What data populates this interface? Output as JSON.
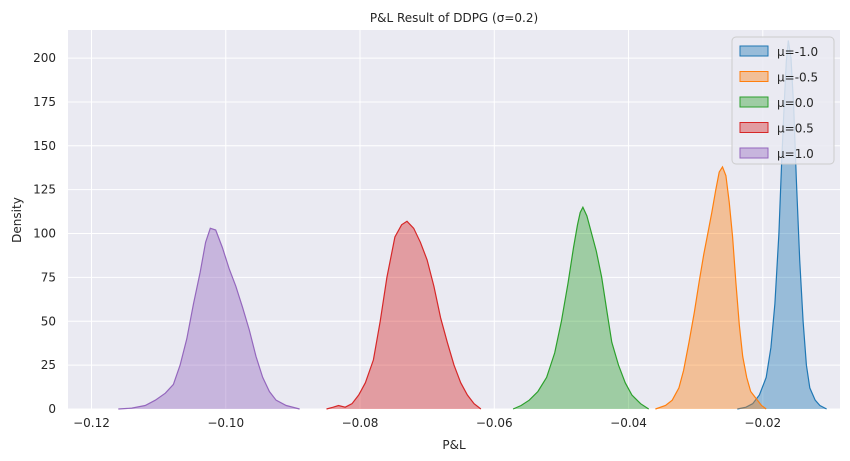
{
  "chart_data": {
    "type": "area",
    "title": "P&L Result of DDPG (σ=0.2)",
    "xlabel": "P&L",
    "ylabel": "Density",
    "xlim": [
      -0.1235,
      -0.0085
    ],
    "ylim": [
      0,
      216
    ],
    "x_ticks": [
      -0.12,
      -0.1,
      -0.08,
      -0.06,
      -0.04,
      -0.02
    ],
    "x_tick_labels": [
      "−0.12",
      "−0.10",
      "−0.08",
      "−0.06",
      "−0.04",
      "−0.02"
    ],
    "y_ticks": [
      0,
      25,
      50,
      75,
      100,
      125,
      150,
      175,
      200
    ],
    "y_tick_labels": [
      "0",
      "25",
      "50",
      "75",
      "100",
      "125",
      "150",
      "175",
      "200"
    ],
    "grid": true,
    "legend_position": "top-right",
    "series": [
      {
        "name": "μ=-1.0",
        "color": "#1f77b4",
        "points": [
          [
            -0.0238,
            0
          ],
          [
            -0.0225,
            1
          ],
          [
            -0.0215,
            3
          ],
          [
            -0.0205,
            8
          ],
          [
            -0.0195,
            18
          ],
          [
            -0.0188,
            35
          ],
          [
            -0.0182,
            60
          ],
          [
            -0.0176,
            100
          ],
          [
            -0.0172,
            140
          ],
          [
            -0.0168,
            175
          ],
          [
            -0.0165,
            198
          ],
          [
            -0.0162,
            210
          ],
          [
            -0.0158,
            200
          ],
          [
            -0.0154,
            172
          ],
          [
            -0.015,
            130
          ],
          [
            -0.0145,
            85
          ],
          [
            -0.014,
            50
          ],
          [
            -0.0135,
            25
          ],
          [
            -0.013,
            12
          ],
          [
            -0.0122,
            5
          ],
          [
            -0.0115,
            2
          ],
          [
            -0.0105,
            0
          ]
        ]
      },
      {
        "name": "μ=-0.5",
        "color": "#ff7f0e",
        "points": [
          [
            -0.036,
            0
          ],
          [
            -0.0345,
            2
          ],
          [
            -0.0335,
            5
          ],
          [
            -0.0325,
            12
          ],
          [
            -0.0318,
            22
          ],
          [
            -0.031,
            38
          ],
          [
            -0.0302,
            55
          ],
          [
            -0.0295,
            72
          ],
          [
            -0.0288,
            88
          ],
          [
            -0.0282,
            100
          ],
          [
            -0.0276,
            112
          ],
          [
            -0.027,
            125
          ],
          [
            -0.0265,
            135
          ],
          [
            -0.026,
            138
          ],
          [
            -0.0255,
            133
          ],
          [
            -0.025,
            118
          ],
          [
            -0.0245,
            98
          ],
          [
            -0.024,
            72
          ],
          [
            -0.0235,
            48
          ],
          [
            -0.023,
            30
          ],
          [
            -0.0224,
            18
          ],
          [
            -0.0218,
            10
          ],
          [
            -0.021,
            6
          ],
          [
            -0.0202,
            2
          ],
          [
            -0.0195,
            0
          ]
        ]
      },
      {
        "name": "μ=0.0",
        "color": "#2ca02c",
        "points": [
          [
            -0.0572,
            0
          ],
          [
            -0.056,
            2
          ],
          [
            -0.0548,
            5
          ],
          [
            -0.0535,
            10
          ],
          [
            -0.0522,
            18
          ],
          [
            -0.051,
            32
          ],
          [
            -0.05,
            50
          ],
          [
            -0.049,
            72
          ],
          [
            -0.0482,
            92
          ],
          [
            -0.0476,
            105
          ],
          [
            -0.0472,
            112
          ],
          [
            -0.0468,
            115
          ],
          [
            -0.0462,
            110
          ],
          [
            -0.0455,
            100
          ],
          [
            -0.0448,
            90
          ],
          [
            -0.044,
            75
          ],
          [
            -0.0432,
            55
          ],
          [
            -0.0425,
            38
          ],
          [
            -0.0415,
            25
          ],
          [
            -0.0405,
            15
          ],
          [
            -0.0395,
            8
          ],
          [
            -0.0382,
            3
          ],
          [
            -0.037,
            0
          ]
        ]
      },
      {
        "name": "μ=0.5",
        "color": "#d62728",
        "points": [
          [
            -0.085,
            0
          ],
          [
            -0.084,
            1
          ],
          [
            -0.0832,
            2
          ],
          [
            -0.0822,
            1
          ],
          [
            -0.0812,
            3
          ],
          [
            -0.0802,
            8
          ],
          [
            -0.0792,
            15
          ],
          [
            -0.078,
            28
          ],
          [
            -0.077,
            50
          ],
          [
            -0.076,
            75
          ],
          [
            -0.0748,
            98
          ],
          [
            -0.0738,
            105
          ],
          [
            -0.073,
            107
          ],
          [
            -0.072,
            103
          ],
          [
            -0.071,
            95
          ],
          [
            -0.07,
            85
          ],
          [
            -0.069,
            70
          ],
          [
            -0.068,
            52
          ],
          [
            -0.067,
            38
          ],
          [
            -0.066,
            25
          ],
          [
            -0.065,
            15
          ],
          [
            -0.064,
            8
          ],
          [
            -0.063,
            3
          ],
          [
            -0.062,
            0
          ]
        ]
      },
      {
        "name": "μ=1.0",
        "color": "#9467bd",
        "points": [
          [
            -0.116,
            0
          ],
          [
            -0.114,
            0.5
          ],
          [
            -0.112,
            2
          ],
          [
            -0.1105,
            5
          ],
          [
            -0.109,
            9
          ],
          [
            -0.1078,
            14
          ],
          [
            -0.1068,
            25
          ],
          [
            -0.1058,
            40
          ],
          [
            -0.1048,
            60
          ],
          [
            -0.1038,
            78
          ],
          [
            -0.103,
            95
          ],
          [
            -0.1023,
            103
          ],
          [
            -0.1015,
            102
          ],
          [
            -0.1005,
            92
          ],
          [
            -0.0995,
            80
          ],
          [
            -0.0985,
            70
          ],
          [
            -0.0975,
            58
          ],
          [
            -0.0965,
            45
          ],
          [
            -0.0955,
            30
          ],
          [
            -0.0945,
            18
          ],
          [
            -0.0935,
            10
          ],
          [
            -0.0925,
            5
          ],
          [
            -0.091,
            2
          ],
          [
            -0.089,
            0
          ]
        ]
      }
    ]
  }
}
